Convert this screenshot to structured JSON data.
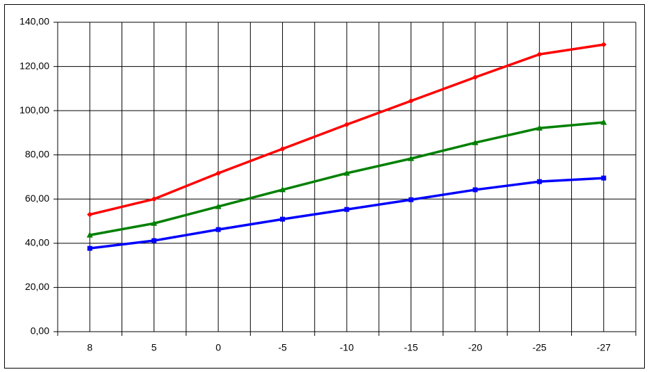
{
  "chart_data": {
    "type": "line",
    "categories": [
      "8",
      "5",
      "0",
      "-5",
      "-10",
      "-15",
      "-20",
      "-25",
      "-27"
    ],
    "series": [
      {
        "color": "#ff0000",
        "marker": "diamond",
        "values": [
          53,
          60,
          71.7,
          82.7,
          93.7,
          104.4,
          115.1,
          125.5,
          129.9
        ]
      },
      {
        "color": "#008000",
        "marker": "triangle",
        "values": [
          43.7,
          49,
          56.6,
          64.2,
          71.7,
          78.3,
          85.5,
          92.1,
          94.7
        ]
      },
      {
        "color": "#0000ff",
        "marker": "square",
        "values": [
          37.7,
          41.2,
          46.2,
          50.9,
          55.3,
          59.7,
          64.2,
          67.9,
          69.5
        ]
      }
    ],
    "ylim": [
      0,
      140
    ],
    "yticks": [
      {
        "value": 0,
        "label": "0,00"
      },
      {
        "value": 20,
        "label": "20,00"
      },
      {
        "value": 40,
        "label": "40,00"
      },
      {
        "value": 60,
        "label": "60,00"
      },
      {
        "value": 80,
        "label": "80,00"
      },
      {
        "value": 100,
        "label": "100,00"
      },
      {
        "value": 120,
        "label": "120,00"
      },
      {
        "value": 140,
        "label": "140,00"
      }
    ],
    "grid": true
  }
}
